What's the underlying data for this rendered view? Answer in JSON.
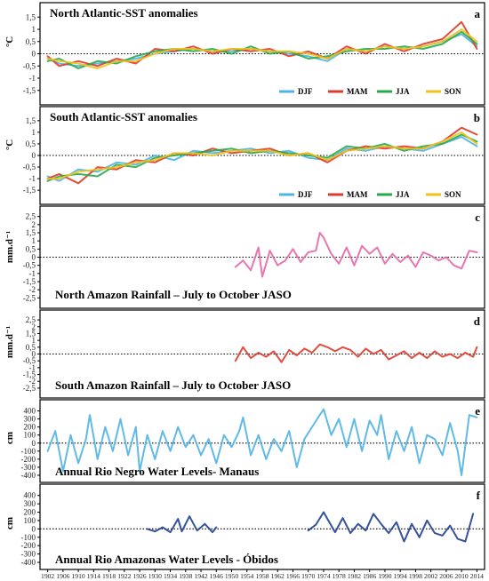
{
  "chart_data": [
    {
      "type": "line",
      "letter": "a",
      "title": "North Atlantic-SST anomalies",
      "ylabel": "°C",
      "yticks": [
        "1,5",
        "1",
        "0,5",
        "0",
        "-0,5",
        "-1",
        "-1,5"
      ],
      "ylim": [
        -1.8,
        1.8
      ],
      "reference_line": 0,
      "legend": [
        "DJF",
        "MAM",
        "JJA",
        "SON"
      ],
      "legend_position": "bottom-right",
      "series": [
        {
          "name": "DJF",
          "color": "#4fb3e6",
          "x": [
            1902,
            1905,
            1910,
            1915,
            1920,
            1925,
            1930,
            1935,
            1940,
            1945,
            1950,
            1955,
            1960,
            1965,
            1970,
            1975,
            1980,
            1985,
            1990,
            1995,
            2000,
            2005,
            2010,
            2014
          ],
          "y": [
            -0.2,
            -0.4,
            -0.5,
            -0.4,
            -0.3,
            -0.2,
            0.0,
            0.1,
            0.2,
            0.1,
            0.1,
            0.2,
            0.1,
            0.0,
            -0.1,
            -0.3,
            0.2,
            0.1,
            0.3,
            0.2,
            0.3,
            0.5,
            0.8,
            0.3
          ]
        },
        {
          "name": "MAM",
          "color": "#e03a2a",
          "x": [
            1902,
            1905,
            1910,
            1915,
            1920,
            1925,
            1930,
            1935,
            1940,
            1945,
            1950,
            1955,
            1960,
            1965,
            1970,
            1975,
            1980,
            1985,
            1990,
            1995,
            2000,
            2005,
            2010,
            2014
          ],
          "y": [
            -0.1,
            -0.5,
            -0.3,
            -0.5,
            -0.2,
            -0.4,
            0.2,
            0.1,
            0.3,
            0.0,
            0.2,
            0.1,
            0.2,
            -0.1,
            0.1,
            -0.2,
            0.3,
            0.0,
            0.4,
            0.1,
            0.4,
            0.6,
            1.3,
            0.2
          ]
        },
        {
          "name": "JJA",
          "color": "#2aa84a",
          "x": [
            1902,
            1905,
            1910,
            1915,
            1920,
            1925,
            1930,
            1935,
            1940,
            1945,
            1950,
            1955,
            1960,
            1965,
            1970,
            1975,
            1980,
            1985,
            1990,
            1995,
            2000,
            2005,
            2010,
            2014
          ],
          "y": [
            -0.3,
            -0.2,
            -0.6,
            -0.3,
            -0.4,
            -0.1,
            0.1,
            0.2,
            0.1,
            0.2,
            0.0,
            0.3,
            0.0,
            0.1,
            -0.2,
            -0.1,
            0.1,
            0.2,
            0.2,
            0.3,
            0.2,
            0.4,
            0.9,
            0.4
          ]
        },
        {
          "name": "SON",
          "color": "#f2c21b",
          "x": [
            1902,
            1905,
            1910,
            1915,
            1920,
            1925,
            1930,
            1935,
            1940,
            1945,
            1950,
            1955,
            1960,
            1965,
            1970,
            1975,
            1980,
            1985,
            1990,
            1995,
            2000,
            2005,
            2010,
            2014
          ],
          "y": [
            -0.2,
            -0.3,
            -0.4,
            -0.6,
            -0.3,
            -0.3,
            0.0,
            0.2,
            0.2,
            0.1,
            0.2,
            0.2,
            0.1,
            0.1,
            0.0,
            -0.2,
            0.2,
            0.1,
            0.3,
            0.2,
            0.3,
            0.5,
            1.0,
            0.5
          ]
        }
      ]
    },
    {
      "type": "line",
      "letter": "b",
      "title": "South Atlantic-SST anomalies",
      "ylabel": "°C",
      "yticks": [
        "1,5",
        "1",
        "0,5",
        "0",
        "-0,5",
        "-1",
        "-1,5"
      ],
      "ylim": [
        -1.8,
        1.8
      ],
      "reference_line": 0,
      "legend": [
        "DJF",
        "MAM",
        "JJA",
        "SON"
      ],
      "legend_position": "bottom-right",
      "series": [
        {
          "name": "DJF",
          "color": "#4fb3e6",
          "x": [
            1902,
            1905,
            1910,
            1915,
            1920,
            1925,
            1930,
            1935,
            1940,
            1945,
            1950,
            1955,
            1960,
            1965,
            1970,
            1975,
            1980,
            1985,
            1990,
            1995,
            2000,
            2005,
            2010,
            2014
          ],
          "y": [
            -0.9,
            -1.1,
            -0.6,
            -0.7,
            -0.3,
            -0.4,
            0.0,
            -0.2,
            0.2,
            0.1,
            0.2,
            0.3,
            0.1,
            0.2,
            -0.1,
            -0.2,
            0.3,
            0.2,
            0.4,
            0.3,
            0.2,
            0.5,
            0.8,
            0.4
          ]
        },
        {
          "name": "MAM",
          "color": "#e03a2a",
          "x": [
            1902,
            1905,
            1910,
            1915,
            1920,
            1925,
            1930,
            1935,
            1940,
            1945,
            1950,
            1955,
            1960,
            1965,
            1970,
            1975,
            1980,
            1985,
            1990,
            1995,
            2000,
            2005,
            2010,
            2014
          ],
          "y": [
            -1.0,
            -0.8,
            -1.2,
            -0.5,
            -0.6,
            -0.2,
            -0.3,
            0.1,
            0.0,
            0.3,
            0.1,
            0.2,
            0.3,
            0.0,
            0.1,
            -0.3,
            0.2,
            0.4,
            0.3,
            0.4,
            0.3,
            0.6,
            1.2,
            0.9
          ]
        },
        {
          "name": "JJA",
          "color": "#2aa84a",
          "x": [
            1902,
            1905,
            1910,
            1915,
            1920,
            1925,
            1930,
            1935,
            1940,
            1945,
            1950,
            1955,
            1960,
            1965,
            1970,
            1975,
            1980,
            1985,
            1990,
            1995,
            2000,
            2005,
            2010,
            2014
          ],
          "y": [
            -1.1,
            -0.9,
            -0.8,
            -0.9,
            -0.4,
            -0.5,
            -0.1,
            0.0,
            0.1,
            0.2,
            0.3,
            0.1,
            0.2,
            0.1,
            0.0,
            -0.1,
            0.4,
            0.3,
            0.5,
            0.2,
            0.4,
            0.5,
            0.9,
            0.6
          ]
        },
        {
          "name": "SON",
          "color": "#f2c21b",
          "x": [
            1902,
            1905,
            1910,
            1915,
            1920,
            1925,
            1930,
            1935,
            1940,
            1945,
            1950,
            1955,
            1960,
            1965,
            1970,
            1975,
            1980,
            1985,
            1990,
            1995,
            2000,
            2005,
            2010,
            2014
          ],
          "y": [
            -1.0,
            -1.0,
            -0.7,
            -0.6,
            -0.5,
            -0.3,
            -0.2,
            0.1,
            0.1,
            0.0,
            0.2,
            0.2,
            0.2,
            0.0,
            0.1,
            -0.2,
            0.2,
            0.3,
            0.4,
            0.3,
            0.3,
            0.6,
            1.0,
            0.5
          ]
        }
      ]
    },
    {
      "type": "line",
      "letter": "c",
      "title": "North Amazon Rainfall – July to October JASO",
      "ylabel": "mm.d⁻¹",
      "yticks": [
        "2,5",
        "2",
        "1,5",
        "1",
        "0,5",
        "0",
        "-0,5",
        "-1",
        "-1,5",
        "-2",
        "-2,5"
      ],
      "ylim": [
        -2.7,
        2.7
      ],
      "reference_line": 0,
      "series": [
        {
          "name": "",
          "color": "#e467a8",
          "x": [
            1951,
            1953,
            1955,
            1957,
            1958,
            1960,
            1962,
            1964,
            1966,
            1968,
            1970,
            1972,
            1973,
            1974,
            1976,
            1978,
            1980,
            1982,
            1984,
            1986,
            1988,
            1990,
            1992,
            1994,
            1996,
            1998,
            2000,
            2002,
            2004,
            2006,
            2008,
            2010,
            2012,
            2014
          ],
          "y": [
            -0.6,
            -0.2,
            -0.8,
            0.6,
            -1.2,
            0.4,
            -0.5,
            -0.2,
            0.5,
            -0.3,
            0.3,
            0.4,
            1.5,
            1.2,
            0.2,
            -0.4,
            0.6,
            -0.5,
            0.7,
            0.2,
            0.6,
            -0.4,
            0.2,
            -0.3,
            0.1,
            -0.6,
            0.3,
            0.1,
            -0.2,
            0.0,
            -0.5,
            -0.7,
            0.4,
            0.3
          ]
        }
      ]
    },
    {
      "type": "line",
      "letter": "d",
      "title": "South Amazon Rainfall – July to October JASO",
      "ylabel": "mm.d⁻¹",
      "yticks": [
        "2,5",
        "2",
        "1,5",
        "1",
        "0,5",
        "0",
        "-0,5",
        "-1",
        "-1,5",
        "-2",
        "-2,5"
      ],
      "ylim": [
        -2.7,
        2.7
      ],
      "reference_line": 0,
      "series": [
        {
          "name": "",
          "color": "#e03a2a",
          "x": [
            1951,
            1953,
            1955,
            1957,
            1959,
            1961,
            1963,
            1965,
            1967,
            1969,
            1971,
            1973,
            1975,
            1977,
            1979,
            1981,
            1983,
            1985,
            1987,
            1989,
            1991,
            1993,
            1995,
            1997,
            1999,
            2001,
            2003,
            2005,
            2007,
            2009,
            2011,
            2013,
            2014
          ],
          "y": [
            -0.5,
            0.5,
            -0.3,
            0.1,
            -0.2,
            0.2,
            -0.6,
            0.3,
            -0.1,
            0.4,
            0.1,
            0.7,
            0.5,
            0.2,
            0.5,
            0.3,
            -0.2,
            0.4,
            0.0,
            0.3,
            -0.4,
            -0.1,
            0.2,
            -0.3,
            0.1,
            -0.3,
            0.2,
            -0.2,
            0.0,
            -0.3,
            0.1,
            -0.2,
            0.5
          ]
        }
      ]
    },
    {
      "type": "line",
      "letter": "e",
      "title": "Annual Rio Negro Water Levels- Manaus",
      "ylabel": "cm",
      "yticks": [
        "400",
        "300",
        "200",
        "100",
        "0",
        "-100",
        "-200",
        "-300",
        "-400"
      ],
      "ylim": [
        -400,
        450
      ],
      "reference_line": 0,
      "series": [
        {
          "name": "",
          "color": "#4fb3e6",
          "x": [
            1902,
            1904,
            1906,
            1908,
            1910,
            1912,
            1913,
            1915,
            1917,
            1919,
            1921,
            1923,
            1925,
            1926,
            1928,
            1930,
            1932,
            1934,
            1936,
            1938,
            1940,
            1942,
            1944,
            1946,
            1948,
            1950,
            1952,
            1953,
            1955,
            1957,
            1959,
            1961,
            1963,
            1965,
            1967,
            1969,
            1971,
            1973,
            1974,
            1976,
            1978,
            1980,
            1982,
            1984,
            1986,
            1988,
            1989,
            1991,
            1993,
            1995,
            1997,
            1999,
            2001,
            2003,
            2005,
            2007,
            2009,
            2010,
            2012,
            2014
          ],
          "y": [
            -100,
            150,
            -350,
            100,
            -250,
            50,
            350,
            -200,
            200,
            -100,
            300,
            -150,
            200,
            -350,
            100,
            -200,
            150,
            -100,
            200,
            -50,
            100,
            -150,
            50,
            -250,
            100,
            -50,
            150,
            320,
            -150,
            100,
            -200,
            50,
            -100,
            150,
            -300,
            50,
            200,
            350,
            420,
            100,
            300,
            -50,
            300,
            -100,
            280,
            100,
            350,
            -200,
            150,
            -100,
            200,
            -250,
            100,
            50,
            -150,
            250,
            -100,
            -400,
            350,
            320
          ]
        }
      ]
    },
    {
      "type": "line",
      "letter": "f",
      "title": "Annual Rio Amazonas Water Levels - Óbidos",
      "ylabel": "cm",
      "yticks": [
        "400",
        "300",
        "200",
        "100",
        "0",
        "-100",
        "-200",
        "-300",
        "-400"
      ],
      "ylim": [
        -400,
        450
      ],
      "reference_line": 0,
      "series": [
        {
          "name": "",
          "color": "#1f3f8f",
          "x": [
            1928,
            1930,
            1932,
            1934,
            1936,
            1937,
            1939,
            1941,
            1943,
            1945,
            1946,
            null,
            1970,
            1972,
            1974,
            1975,
            1977,
            1979,
            1981,
            1983,
            1985,
            1987,
            1989,
            1991,
            1993,
            1995,
            1997,
            1999,
            2001,
            2003,
            2005,
            2007,
            2009,
            2011,
            2013
          ],
          "y": [
            0,
            -30,
            20,
            -40,
            120,
            -30,
            150,
            -20,
            60,
            -40,
            20,
            null,
            -20,
            50,
            200,
            120,
            -40,
            130,
            -50,
            60,
            -20,
            180,
            60,
            -50,
            80,
            -150,
            60,
            -100,
            100,
            -50,
            -80,
            40,
            -120,
            -150,
            180
          ]
        }
      ]
    }
  ],
  "x_axis": {
    "xlim": [
      1900,
      2016
    ],
    "tick_labels": [
      "1902",
      "1906",
      "1910",
      "1914",
      "1918",
      "1922",
      "1926",
      "1930",
      "1934",
      "1938",
      "1942",
      "1946",
      "1950",
      "1954",
      "1958",
      "1962",
      "1966",
      "1970",
      "1974",
      "1978",
      "1982",
      "1986",
      "1990",
      "1994",
      "1998",
      "2002",
      "2006",
      "2010",
      "2014"
    ]
  }
}
